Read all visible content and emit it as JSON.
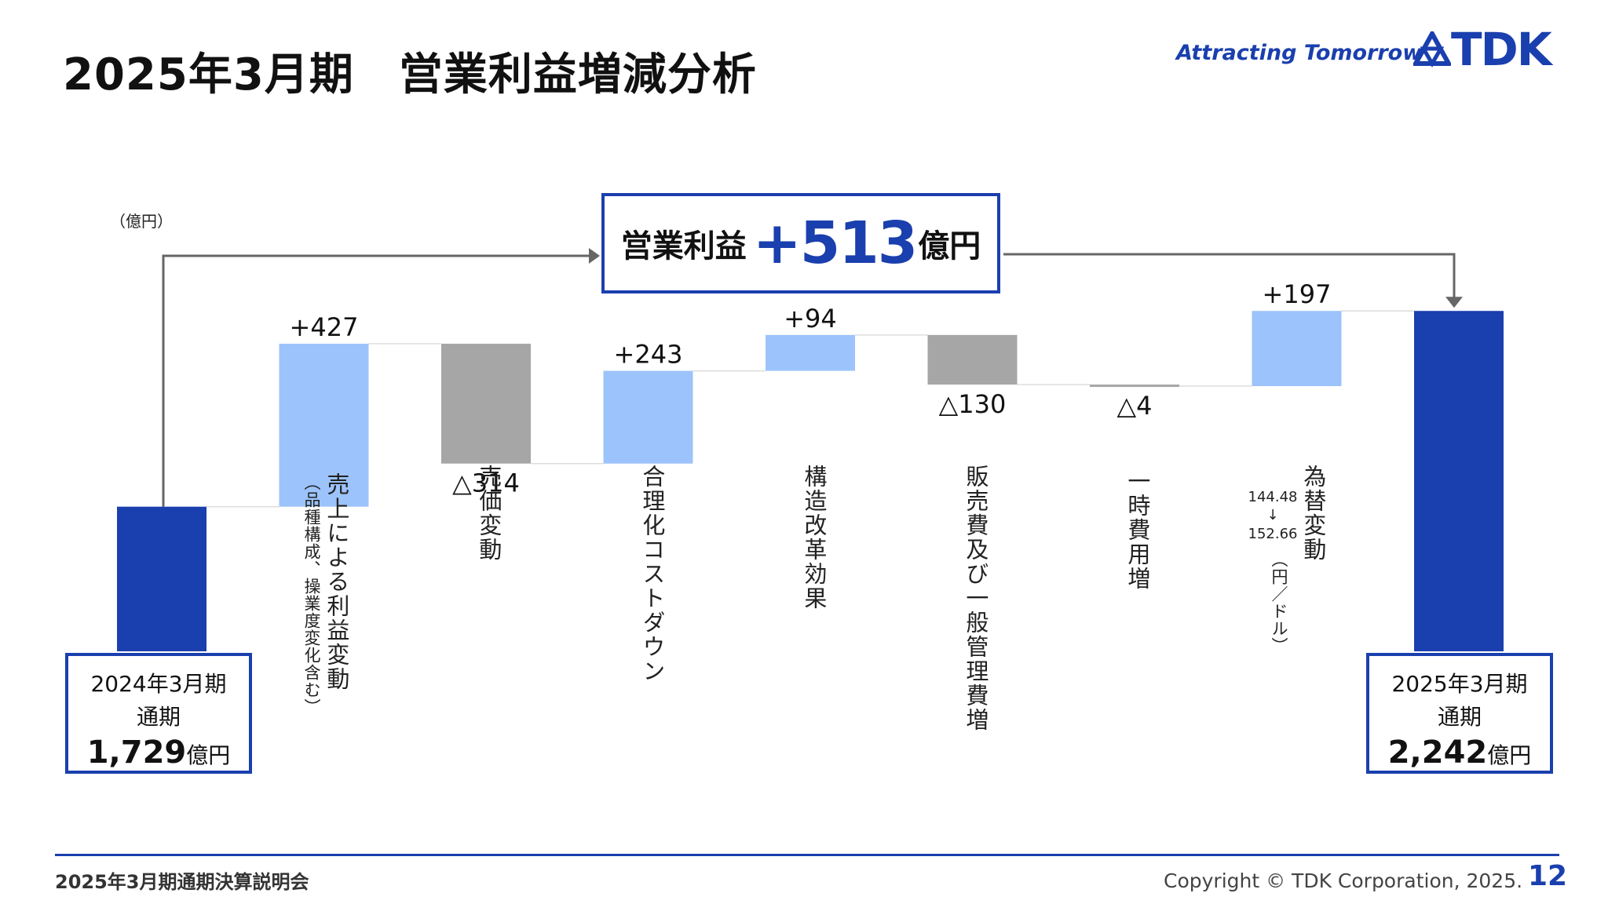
{
  "header": {
    "title": "2025年3月期　営業利益増減分析",
    "tagline": "Attracting Tomorrow",
    "logo_text": "TDK"
  },
  "headline": {
    "label": "営業利益",
    "value": "+513",
    "unit": "億円"
  },
  "chart_data": {
    "type": "bar",
    "subtype": "waterfall",
    "unit_label": "（億円）",
    "start": {
      "line1": "2024年3月期",
      "line2": "通期",
      "amount": "1,729",
      "unit": "億円",
      "value": 1729
    },
    "end": {
      "line1": "2025年3月期",
      "line2": "通期",
      "amount": "2,242",
      "unit": "億円",
      "value": 2242
    },
    "steps": [
      {
        "label": "売上による利益変動",
        "sublabel": "（品種構成、操業度変化含む）",
        "value": 427,
        "display": "+427"
      },
      {
        "label": "売価変動",
        "value": -314,
        "display": "△314"
      },
      {
        "label": "合理化コストダウン",
        "value": 243,
        "display": "+243"
      },
      {
        "label": "構造改革効果",
        "value": 94,
        "display": "+94"
      },
      {
        "label": "販売費及び一般管理費増",
        "value": -130,
        "display": "△130"
      },
      {
        "label": "一時費用増",
        "value": -4,
        "display": "△4"
      },
      {
        "label": "為替変動",
        "sublabel": "（円／ドル）",
        "rate_from": "144.48",
        "rate_arrow": "↓",
        "rate_to": "152.66",
        "value": 197,
        "display": "+197"
      }
    ],
    "colors": {
      "total": "#1a3fae",
      "increase": "#9cc3fb",
      "decrease": "#a6a6a6",
      "connector": "#666666"
    }
  },
  "footer": {
    "event": "2025年3月期通期決算説明会",
    "copyright": "Copyright © TDK Corporation, 2025.",
    "page": "12"
  }
}
